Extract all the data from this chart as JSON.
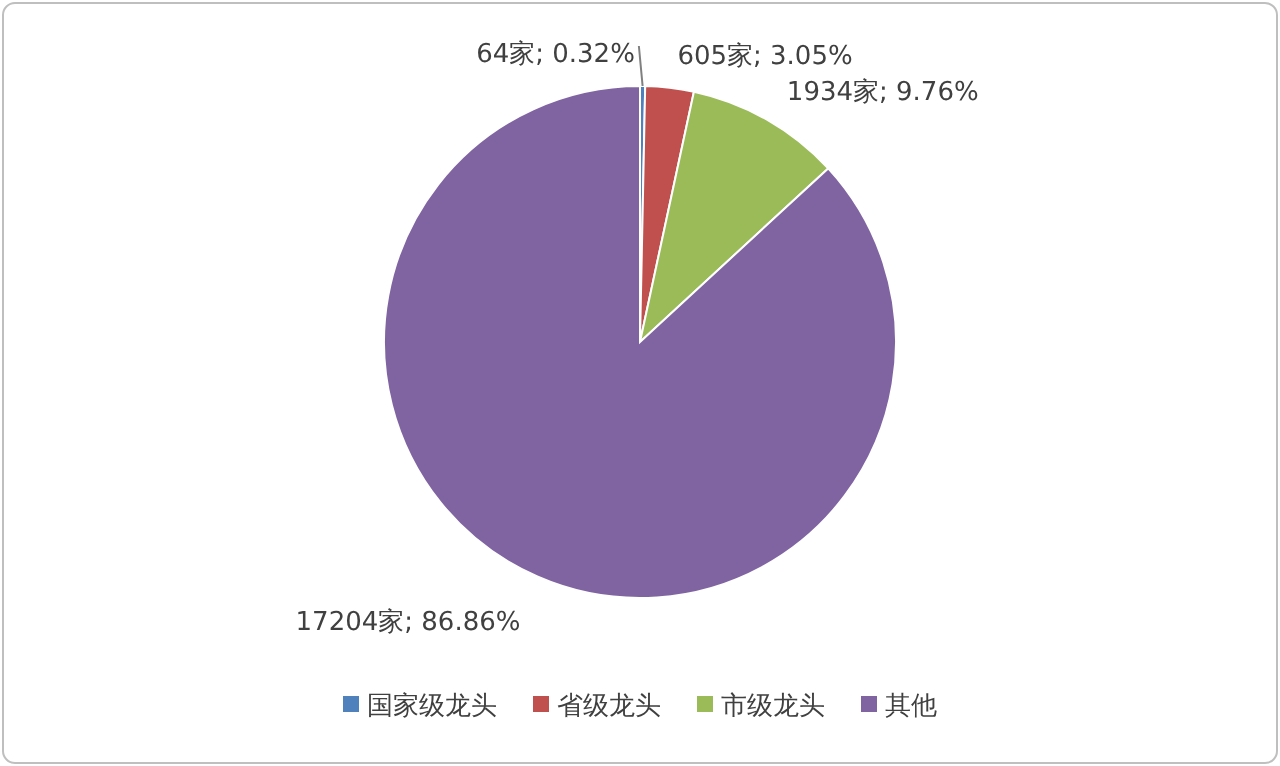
{
  "chart_data": {
    "type": "pie",
    "categories": [
      "国家级龙头",
      "省级龙头",
      "市级龙头",
      "其他"
    ],
    "values": [
      64,
      605,
      1934,
      17204
    ],
    "colors": [
      "#4f81bd",
      "#c0504d",
      "#9bbb59",
      "#8064a2"
    ],
    "value_labels": [
      "64家; 0.32%",
      "605家; 3.05%",
      "1934家; 9.76%",
      "17204家; 86.86%"
    ],
    "legend": "bottom"
  }
}
